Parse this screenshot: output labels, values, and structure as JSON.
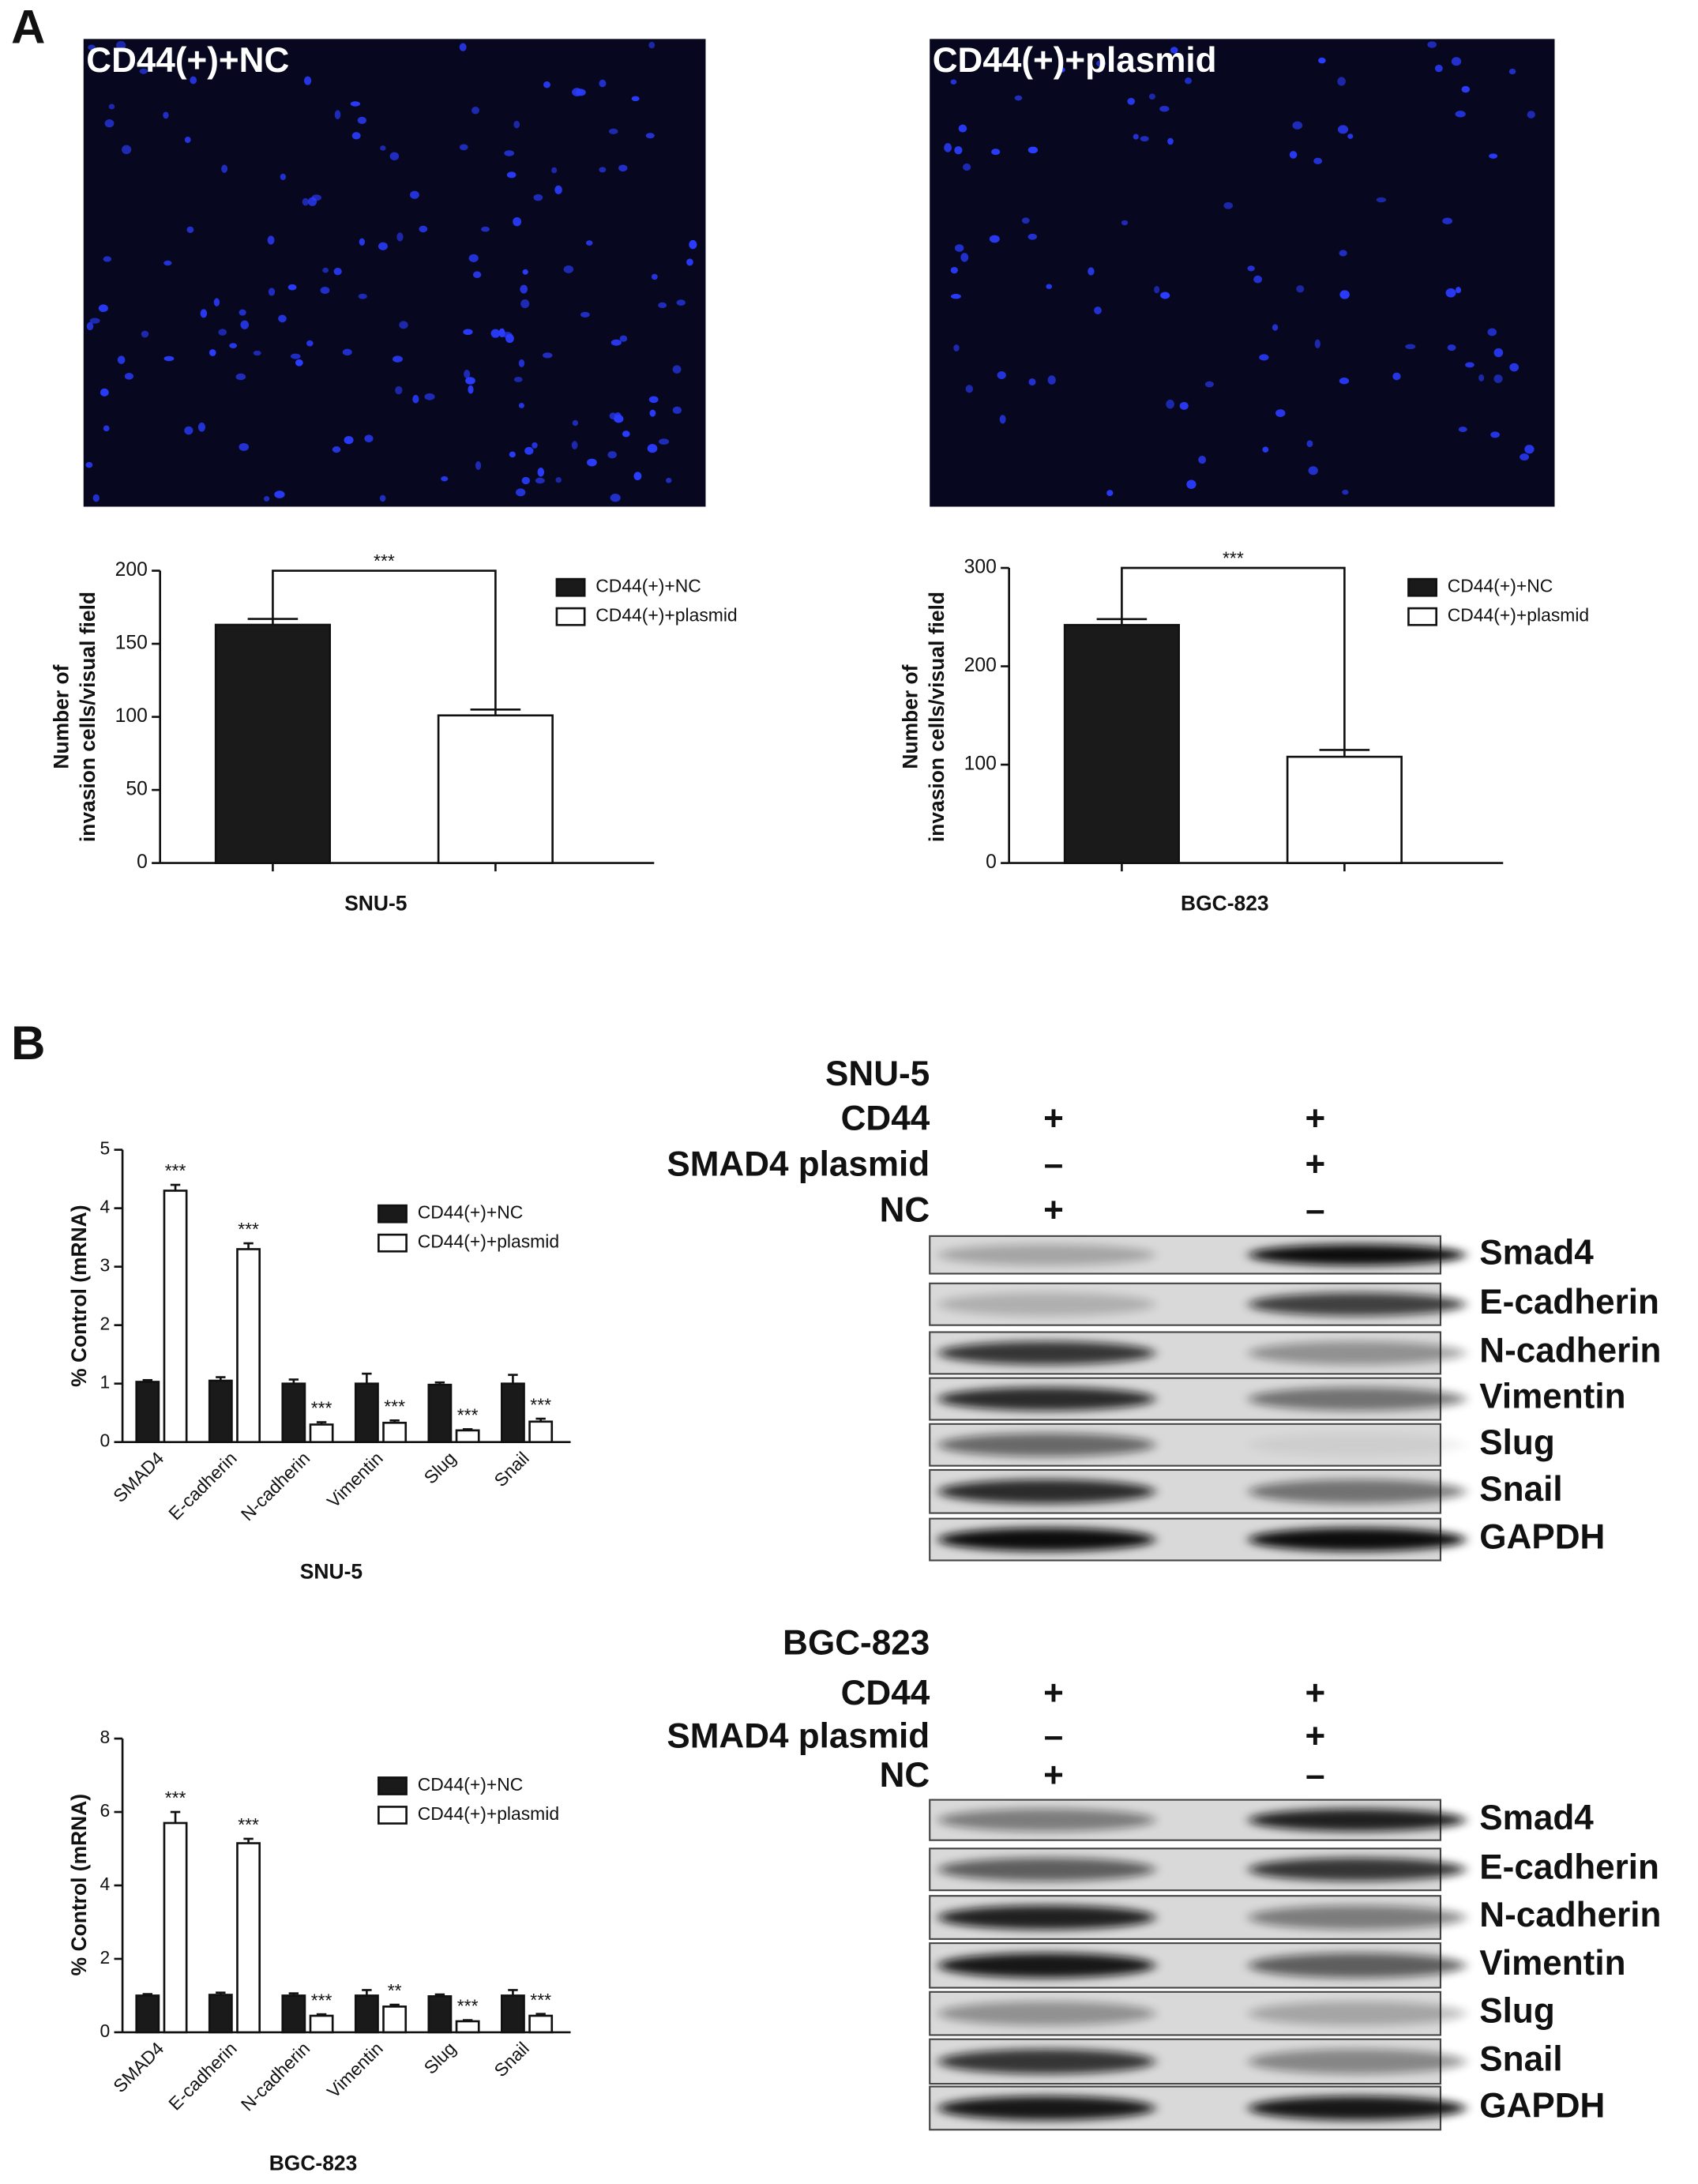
{
  "panels": [
    "A",
    "B"
  ],
  "images": [
    {
      "title": "CD44(+)+NC"
    },
    {
      "title": "CD44(+)+plasmid"
    }
  ],
  "chart_data": [
    {
      "type": "bar",
      "x_label": "SNU-5",
      "y_label": [
        "Number of",
        "invasion cells/visual field"
      ],
      "ylim": [
        0,
        200
      ],
      "yticks": [
        0,
        50,
        100,
        150,
        200
      ],
      "bracket_label": "***",
      "series": [
        {
          "name": "CD44(+)+NC",
          "color": "#1a1a1a",
          "values": [
            163
          ],
          "errors": [
            4
          ]
        },
        {
          "name": "CD44(+)+plasmid",
          "color": "#ffffff",
          "values": [
            101
          ],
          "errors": [
            4
          ]
        }
      ]
    },
    {
      "type": "bar",
      "x_label": "BGC-823",
      "y_label": [
        "Number of",
        "invasion cells/visual field"
      ],
      "ylim": [
        0,
        300
      ],
      "yticks": [
        0,
        100,
        200,
        300
      ],
      "bracket_label": "***",
      "series": [
        {
          "name": "CD44(+)+NC",
          "color": "#1a1a1a",
          "values": [
            242
          ],
          "errors": [
            6
          ]
        },
        {
          "name": "CD44(+)+plasmid",
          "color": "#ffffff",
          "values": [
            108
          ],
          "errors": [
            7
          ]
        }
      ]
    },
    {
      "type": "bar",
      "x_label": "SNU-5",
      "y_label": [
        "% Control (mRNA)"
      ],
      "categories": [
        "SMAD4",
        "E-cadherin",
        "N-cadherin",
        "Vimentin",
        "Slug",
        "Snail"
      ],
      "ylim": [
        0,
        5
      ],
      "yticks": [
        0,
        1,
        2,
        3,
        4,
        5
      ],
      "series": [
        {
          "name": "CD44(+)+NC",
          "color": "#1a1a1a",
          "values": [
            1.03,
            1.05,
            1.0,
            1.0,
            0.98,
            1.0
          ],
          "errors": [
            0.03,
            0.06,
            0.07,
            0.17,
            0.04,
            0.15
          ]
        },
        {
          "name": "CD44(+)+plasmid",
          "color": "#ffffff",
          "values": [
            4.3,
            3.3,
            0.3,
            0.33,
            0.2,
            0.35
          ],
          "errors": [
            0.1,
            0.1,
            0.04,
            0.04,
            0.02,
            0.05
          ],
          "annotations": [
            "***",
            "***",
            "***",
            "***",
            "***",
            "***"
          ]
        }
      ]
    },
    {
      "type": "bar",
      "x_label": "BGC-823",
      "y_label": [
        "% Control (mRNA)"
      ],
      "categories": [
        "SMAD4",
        "E-cadherin",
        "N-cadherin",
        "Vimentin",
        "Slug",
        "Snail"
      ],
      "ylim": [
        0,
        8
      ],
      "yticks": [
        0,
        2,
        4,
        6,
        8
      ],
      "series": [
        {
          "name": "CD44(+)+NC",
          "color": "#1a1a1a",
          "values": [
            1.0,
            1.02,
            1.0,
            1.0,
            0.98,
            1.0
          ],
          "errors": [
            0.04,
            0.06,
            0.06,
            0.15,
            0.05,
            0.15
          ]
        },
        {
          "name": "CD44(+)+plasmid",
          "color": "#ffffff",
          "values": [
            5.7,
            5.15,
            0.45,
            0.7,
            0.3,
            0.45
          ],
          "errors": [
            0.3,
            0.12,
            0.04,
            0.05,
            0.03,
            0.05
          ],
          "annotations": [
            "***",
            "***",
            "***",
            "**",
            "***",
            "***"
          ]
        }
      ]
    }
  ],
  "blots": [
    {
      "cell_line": "SNU-5",
      "conditions": [
        {
          "label": "CD44",
          "lanes": [
            "+",
            "+"
          ]
        },
        {
          "label": "SMAD4 plasmid",
          "lanes": [
            "–",
            "+"
          ]
        },
        {
          "label": "NC",
          "lanes": [
            "+",
            "–"
          ]
        }
      ],
      "proteins": [
        "Smad4",
        "E-cadherin",
        "N-cadherin",
        "Vimentin",
        "Slug",
        "Snail",
        "GAPDH"
      ]
    },
    {
      "cell_line": "BGC-823",
      "conditions": [
        {
          "label": "CD44",
          "lanes": [
            "+",
            "+"
          ]
        },
        {
          "label": "SMAD4 plasmid",
          "lanes": [
            "–",
            "+"
          ]
        },
        {
          "label": "NC",
          "lanes": [
            "+",
            "–"
          ]
        }
      ],
      "proteins": [
        "Smad4",
        "E-cadherin",
        "N-cadherin",
        "Vimentin",
        "Slug",
        "Snail",
        "GAPDH"
      ]
    }
  ]
}
